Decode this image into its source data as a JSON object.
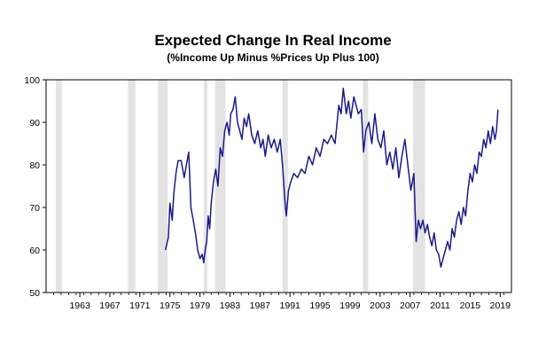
{
  "chart_data": {
    "type": "line",
    "title": "Expected Change In Real Income",
    "subtitle": "(%Income Up Minus %Prices Up Plus 100)",
    "xlabel": "",
    "ylabel": "",
    "xlim": [
      1959,
      2021
    ],
    "ylim": [
      50,
      100
    ],
    "yticks": [
      50,
      60,
      70,
      80,
      90,
      100
    ],
    "xticks": [
      "1963",
      "1967",
      "1971",
      "1975",
      "1979",
      "1983",
      "1987",
      "1991",
      "1995",
      "1999",
      "2003",
      "2007",
      "2011",
      "2015",
      "2019"
    ],
    "grid": false,
    "legend": "none",
    "line_color": "#1a1a8c",
    "recession_color": "#e3e3e3",
    "recessions": [
      [
        1960.3,
        1961.1
      ],
      [
        1969.9,
        1970.9
      ],
      [
        1973.9,
        1975.2
      ],
      [
        1980.0,
        1980.5
      ],
      [
        1981.5,
        1982.9
      ],
      [
        1990.5,
        1991.2
      ],
      [
        2001.2,
        2001.9
      ],
      [
        2007.9,
        2009.5
      ]
    ],
    "series": [
      {
        "x": [
          1974.9,
          1975.3,
          1975.5,
          1975.8,
          1976.0,
          1976.3,
          1976.6,
          1977.0,
          1977.4,
          1977.7,
          1978.0,
          1978.3,
          1978.6,
          1978.9,
          1979.2,
          1979.5,
          1979.8,
          1980.0,
          1980.2,
          1980.4,
          1980.6,
          1980.8,
          1981.0,
          1981.3,
          1981.6,
          1981.9,
          1982.2,
          1982.5,
          1982.8,
          1983.1,
          1983.4,
          1983.6,
          1983.9,
          1984.2,
          1984.5,
          1984.8,
          1985.1,
          1985.4,
          1985.7,
          1986.0,
          1986.4,
          1986.8,
          1987.2,
          1987.6,
          1987.9,
          1988.2,
          1988.6,
          1989.0,
          1989.4,
          1989.8,
          1990.2,
          1990.5,
          1990.8,
          1991.0,
          1991.3,
          1991.6,
          1992.0,
          1992.5,
          1993.0,
          1993.5,
          1994.0,
          1994.5,
          1995.0,
          1995.5,
          1996.0,
          1996.5,
          1997.0,
          1997.5,
          1998.0,
          1998.3,
          1998.6,
          1999.0,
          1999.3,
          1999.6,
          2000.0,
          2000.3,
          2000.6,
          2001.0,
          2001.3,
          2001.6,
          2002.0,
          2002.4,
          2002.8,
          2003.2,
          2003.6,
          2004.0,
          2004.4,
          2004.8,
          2005.2,
          2005.6,
          2006.0,
          2006.4,
          2006.8,
          2007.2,
          2007.6,
          2008.0,
          2008.3,
          2008.6,
          2008.9,
          2009.2,
          2009.5,
          2009.8,
          2010.1,
          2010.4,
          2010.7,
          2011.0,
          2011.3,
          2011.6,
          2011.9,
          2012.2,
          2012.5,
          2012.8,
          2013.1,
          2013.4,
          2013.7,
          2014.0,
          2014.3,
          2014.6,
          2014.9,
          2015.2,
          2015.5,
          2015.8,
          2016.1,
          2016.4,
          2016.7,
          2017.0,
          2017.3,
          2017.6,
          2017.9,
          2018.2,
          2018.5,
          2018.8,
          2019.0,
          2019.2
        ],
        "values": [
          60,
          63,
          71,
          67,
          73,
          78,
          81,
          81,
          77,
          80,
          83,
          70,
          67,
          64,
          60,
          58,
          59,
          57,
          60,
          62,
          68,
          65,
          71,
          76,
          79,
          75,
          84,
          82,
          88,
          90,
          87,
          92,
          93,
          96,
          90,
          88,
          86,
          91,
          89,
          92,
          87,
          85,
          88,
          84,
          86,
          82,
          87,
          84,
          86,
          83,
          86,
          80,
          72,
          68,
          74,
          76,
          78,
          77,
          79,
          78,
          82,
          80,
          84,
          82,
          86,
          85,
          87,
          85,
          94,
          92,
          98,
          92,
          95,
          91,
          96,
          94,
          92,
          93,
          83,
          88,
          90,
          85,
          92,
          86,
          84,
          88,
          80,
          83,
          79,
          84,
          77,
          82,
          86,
          80,
          74,
          78,
          62,
          67,
          65,
          67,
          64,
          66,
          63,
          61,
          64,
          60,
          59,
          56,
          58,
          60,
          62,
          60,
          65,
          63,
          67,
          69,
          66,
          70,
          68,
          74,
          78,
          76,
          80,
          78,
          83,
          82,
          86,
          84,
          88,
          85,
          89,
          86,
          88,
          93
        ]
      }
    ]
  }
}
